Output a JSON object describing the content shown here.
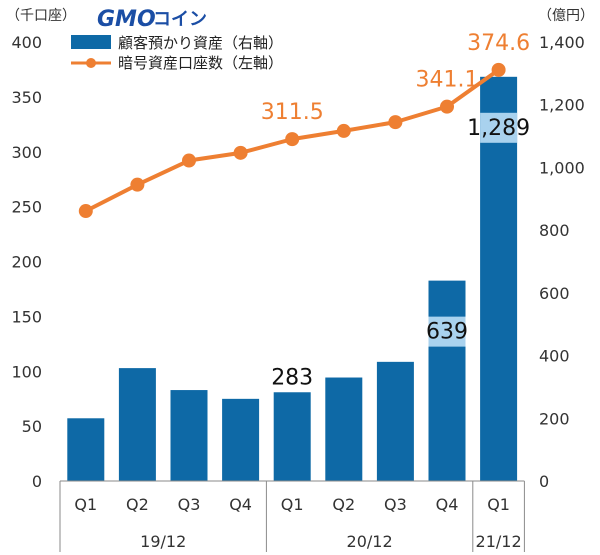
{
  "logo": {
    "brand": "GMO",
    "suffix": "コイン"
  },
  "chart_data": {
    "type": "bar+line",
    "categories": [
      "Q1",
      "Q2",
      "Q3",
      "Q4",
      "Q1",
      "Q2",
      "Q3",
      "Q4",
      "Q1"
    ],
    "groups": [
      {
        "label": "19/12",
        "count": 4
      },
      {
        "label": "20/12",
        "count": 4
      },
      {
        "label": "21/12",
        "count": 1
      }
    ],
    "left_axis": {
      "unit": "（千口座）",
      "ticks": [
        "0",
        "50",
        "100",
        "150",
        "200",
        "250",
        "300",
        "350",
        "400"
      ],
      "min": 0,
      "max": 400
    },
    "right_axis": {
      "unit": "（億円）",
      "ticks": [
        "0",
        "200",
        "400",
        "600",
        "800",
        "1,000",
        "1,200",
        "1,400"
      ],
      "min": 0,
      "max": 1400
    },
    "series": [
      {
        "name": "顧客預かり資産（右軸）",
        "type": "bar",
        "axis": "right",
        "color": "#0e69a6",
        "values": [
          200,
          360,
          290,
          262,
          283,
          330,
          380,
          639,
          1289
        ]
      },
      {
        "name": "暗号資産口座数（左軸）",
        "type": "line",
        "axis": "left",
        "color": "#ee7f32",
        "values": [
          246,
          270,
          292,
          299,
          311.5,
          319,
          327,
          341.1,
          374.6
        ]
      }
    ],
    "data_labels": [
      {
        "series": 0,
        "index": 4,
        "text": "283",
        "color": "#111111",
        "placement": "above"
      },
      {
        "series": 0,
        "index": 7,
        "text": "639",
        "color": "#111111",
        "placement": "inside"
      },
      {
        "series": 0,
        "index": 8,
        "text": "1,289",
        "color": "#111111",
        "placement": "inside"
      },
      {
        "series": 1,
        "index": 4,
        "text": "311.5",
        "color": "#ee7f32",
        "placement": "above"
      },
      {
        "series": 1,
        "index": 7,
        "text": "341.1",
        "color": "#ee7f32",
        "placement": "above"
      },
      {
        "series": 1,
        "index": 8,
        "text": "374.6",
        "color": "#ee7f32",
        "placement": "above"
      }
    ],
    "grid": false,
    "legend_position": "top-left"
  }
}
